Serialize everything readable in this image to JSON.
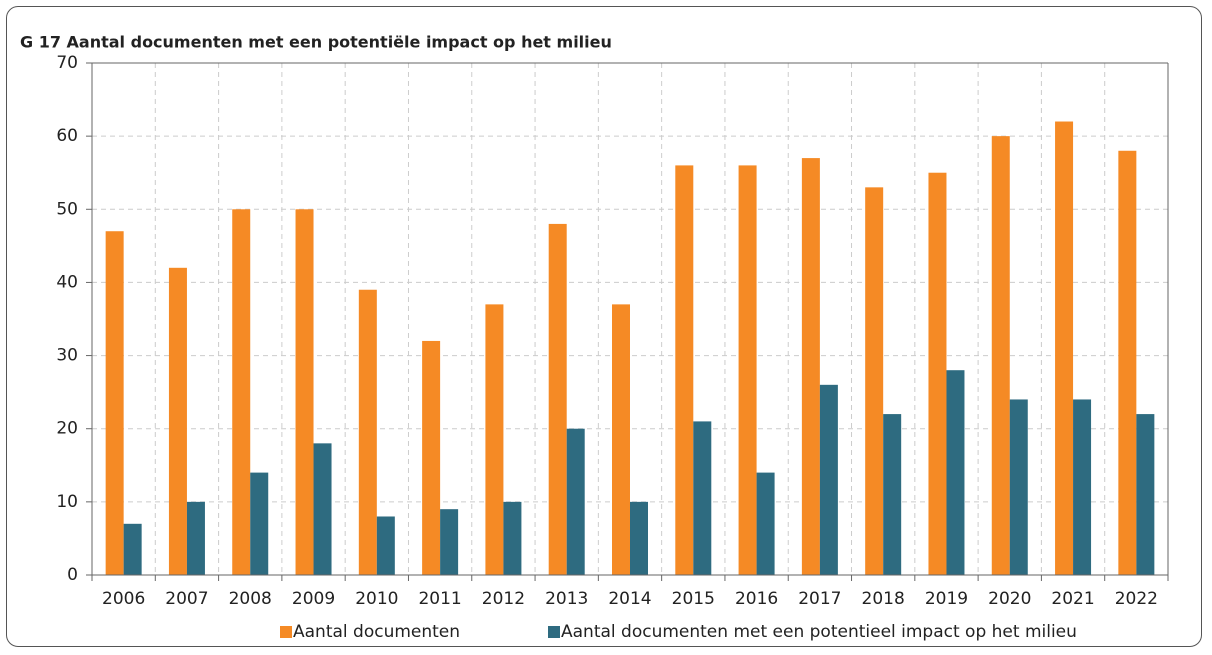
{
  "chart_data": {
    "type": "bar",
    "title": "G 17 Aantal documenten met een potentiële impact op het milieu",
    "categories": [
      "2006",
      "2007",
      "2008",
      "2009",
      "2010",
      "2011",
      "2012",
      "2013",
      "2014",
      "2015",
      "2016",
      "2017",
      "2018",
      "2019",
      "2020",
      "2021",
      "2022"
    ],
    "series": [
      {
        "name": "Aantal documenten",
        "color": "#f58a25",
        "values": [
          47,
          42,
          50,
          50,
          39,
          32,
          37,
          48,
          37,
          56,
          56,
          57,
          53,
          55,
          60,
          62,
          58
        ]
      },
      {
        "name": "Aantal documenten met een potentieel impact op het milieu",
        "color": "#2e6b80",
        "values": [
          7,
          10,
          14,
          18,
          8,
          9,
          10,
          20,
          10,
          21,
          14,
          26,
          22,
          28,
          24,
          24,
          22
        ]
      }
    ],
    "ylim": [
      0,
      70
    ],
    "yticks": [
      0,
      10,
      20,
      30,
      40,
      50,
      60,
      70
    ],
    "grid": true,
    "legend": "bottom"
  }
}
